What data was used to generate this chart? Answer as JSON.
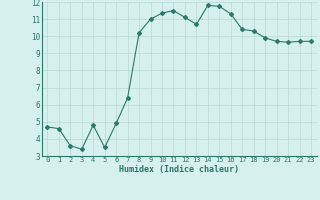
{
  "x": [
    0,
    1,
    2,
    3,
    4,
    5,
    6,
    7,
    8,
    9,
    10,
    11,
    12,
    13,
    14,
    15,
    16,
    17,
    18,
    19,
    20,
    21,
    22,
    23
  ],
  "y": [
    4.7,
    4.6,
    3.6,
    3.4,
    4.8,
    3.5,
    4.9,
    6.4,
    10.2,
    11.0,
    11.35,
    11.5,
    11.1,
    10.7,
    11.8,
    11.75,
    11.3,
    10.4,
    10.3,
    9.9,
    9.7,
    9.65,
    9.7,
    9.7
  ],
  "xlim": [
    -0.5,
    23.5
  ],
  "ylim": [
    3,
    12
  ],
  "yticks": [
    3,
    4,
    5,
    6,
    7,
    8,
    9,
    10,
    11,
    12
  ],
  "xticks": [
    0,
    1,
    2,
    3,
    4,
    5,
    6,
    7,
    8,
    9,
    10,
    11,
    12,
    13,
    14,
    15,
    16,
    17,
    18,
    19,
    20,
    21,
    22,
    23
  ],
  "xlabel": "Humidex (Indice chaleur)",
  "line_color": "#2a7a6a",
  "marker": "D",
  "marker_size": 2.0,
  "bg_color": "#d6f0ee",
  "grid_color": "#b8d8d4"
}
